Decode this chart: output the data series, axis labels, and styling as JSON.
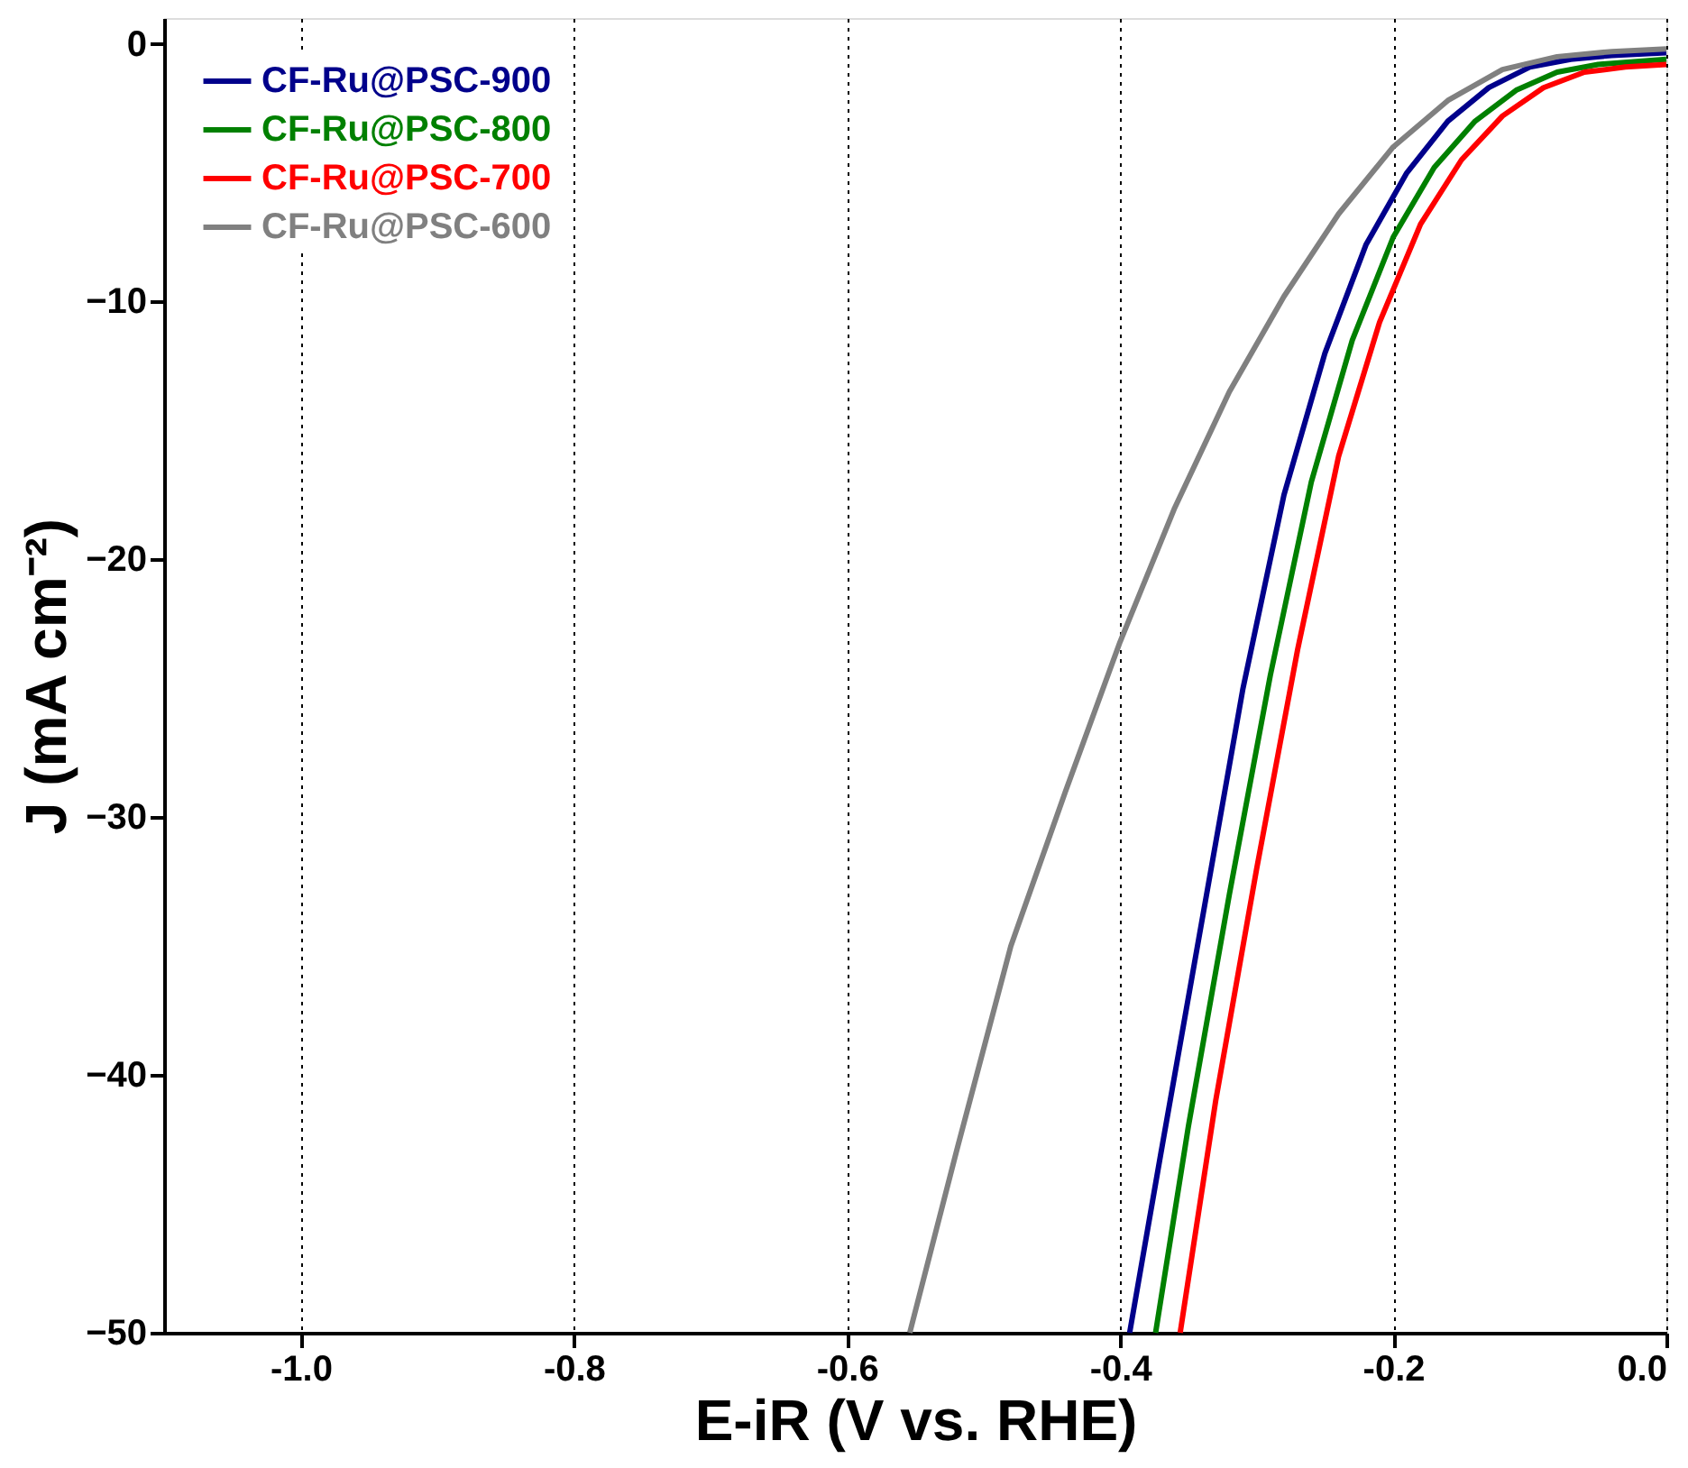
{
  "chart_data": {
    "type": "line",
    "xlabel": "E-iR (V vs. RHE)",
    "ylabel": "J (mA cm⁻²)",
    "xlim": [
      -1.1,
      0
    ],
    "ylim": [
      -50,
      1
    ],
    "xticks": [
      {
        "value": -1.0,
        "label": "-1.0"
      },
      {
        "value": -0.8,
        "label": "-0.8"
      },
      {
        "value": -0.6,
        "label": "-0.6"
      },
      {
        "value": -0.4,
        "label": "-0.4"
      },
      {
        "value": -0.2,
        "label": "-0.2"
      },
      {
        "value": 0,
        "label": "0.0"
      }
    ],
    "yticks": [
      0,
      -10,
      -20,
      -30,
      -40,
      -50
    ],
    "grid": "x",
    "legend": "top left",
    "marker": "none",
    "line_style": "solid",
    "series": [
      {
        "name": "CF-Ru@PSC-900",
        "color": "#00008b",
        "x": [
          -0.393,
          -0.37,
          -0.34,
          -0.31,
          -0.28,
          -0.25,
          -0.22,
          -0.19,
          -0.16,
          -0.13,
          -0.1,
          -0.07,
          -0.04,
          0
        ],
        "values": [
          -50,
          -43,
          -34,
          -25,
          -17.5,
          -12,
          -7.8,
          -5,
          -3,
          -1.7,
          -0.9,
          -0.6,
          -0.45,
          -0.35
        ]
      },
      {
        "name": "CF-Ru@PSC-800",
        "color": "#008000",
        "x": [
          -0.374,
          -0.35,
          -0.32,
          -0.29,
          -0.26,
          -0.23,
          -0.2,
          -0.17,
          -0.14,
          -0.11,
          -0.08,
          -0.05,
          0
        ],
        "values": [
          -50,
          -42,
          -33,
          -24.5,
          -17,
          -11.5,
          -7.5,
          -4.8,
          -3,
          -1.8,
          -1.1,
          -0.8,
          -0.6
        ]
      },
      {
        "name": "CF-Ru@PSC-700",
        "color": "#ff0000",
        "x": [
          -0.356,
          -0.33,
          -0.3,
          -0.27,
          -0.24,
          -0.21,
          -0.18,
          -0.15,
          -0.12,
          -0.09,
          -0.06,
          -0.03,
          0
        ],
        "values": [
          -50,
          -41,
          -32,
          -23.5,
          -16,
          -10.8,
          -7,
          -4.5,
          -2.8,
          -1.7,
          -1.1,
          -0.9,
          -0.8
        ]
      },
      {
        "name": "CF-Ru@PSC-600",
        "color": "#808080",
        "x": [
          -0.554,
          -0.52,
          -0.48,
          -0.44,
          -0.4,
          -0.36,
          -0.32,
          -0.28,
          -0.24,
          -0.2,
          -0.16,
          -0.12,
          -0.08,
          -0.04,
          0
        ],
        "values": [
          -50,
          -43,
          -35,
          -29,
          -23.2,
          -18,
          -13.5,
          -9.8,
          -6.6,
          -4,
          -2.2,
          -1,
          -0.5,
          -0.3,
          -0.2
        ]
      }
    ]
  }
}
